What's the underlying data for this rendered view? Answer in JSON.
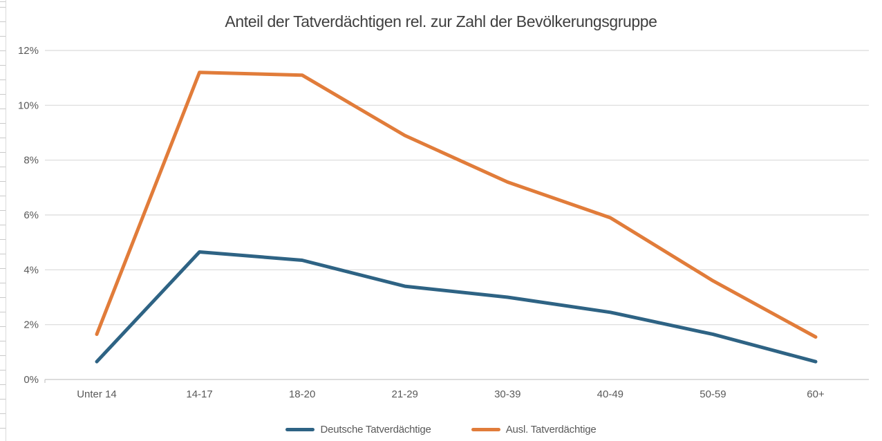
{
  "chart_data": {
    "type": "line",
    "title": "Anteil der Tatverdächtigen rel. zur Zahl der Bevölkerungsgruppe",
    "categories": [
      "Unter 14",
      "14-17",
      "18-20",
      "21-29",
      "30-39",
      "40-49",
      "50-59",
      "60+"
    ],
    "series": [
      {
        "name": "Deutsche Tatverdächtige",
        "color": "#2E6384",
        "values": [
          0.65,
          4.65,
          4.35,
          3.4,
          3.0,
          2.45,
          1.65,
          0.65
        ]
      },
      {
        "name": "Ausl. Tatverdächtige",
        "color": "#E17C3A",
        "values": [
          1.65,
          11.2,
          11.1,
          8.9,
          7.2,
          5.9,
          3.6,
          1.55
        ]
      }
    ],
    "xlabel": "",
    "ylabel": "",
    "ylim": [
      0,
      12
    ],
    "y_tick_interval": 2,
    "y_tick_labels": [
      "0%",
      "2%",
      "4%",
      "6%",
      "8%",
      "10%",
      "12%"
    ],
    "grid": true,
    "legend_position": "bottom"
  },
  "colors": {
    "gridline": "#D9D9D9",
    "axis_line": "#C6C6C6",
    "title_text": "#3F3F3F",
    "tick_text": "#595959"
  }
}
